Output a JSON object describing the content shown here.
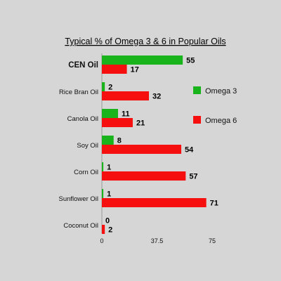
{
  "chart_data": {
    "type": "bar",
    "orientation": "horizontal",
    "title": "Typical % of Omega 3 & 6 in Popular Oils",
    "categories": [
      "CEN Oil",
      "Rice Bran Oil",
      "Canola Oil",
      "Soy Oil",
      "Corn Oil",
      "Sunflower Oil",
      "Coconut Oil"
    ],
    "series": [
      {
        "name": "Omega 3",
        "color": "#19b31b",
        "values": [
          55,
          2,
          11,
          8,
          1,
          1,
          0
        ]
      },
      {
        "name": "Omega 6",
        "color": "#f50f0f",
        "values": [
          17,
          32,
          21,
          54,
          57,
          71,
          2
        ]
      }
    ],
    "xlim": [
      0,
      75
    ],
    "x_ticks": [
      "0",
      "37.5",
      "75"
    ],
    "grid": false,
    "legend_position": "right",
    "highlighted_category": "CEN Oil"
  }
}
